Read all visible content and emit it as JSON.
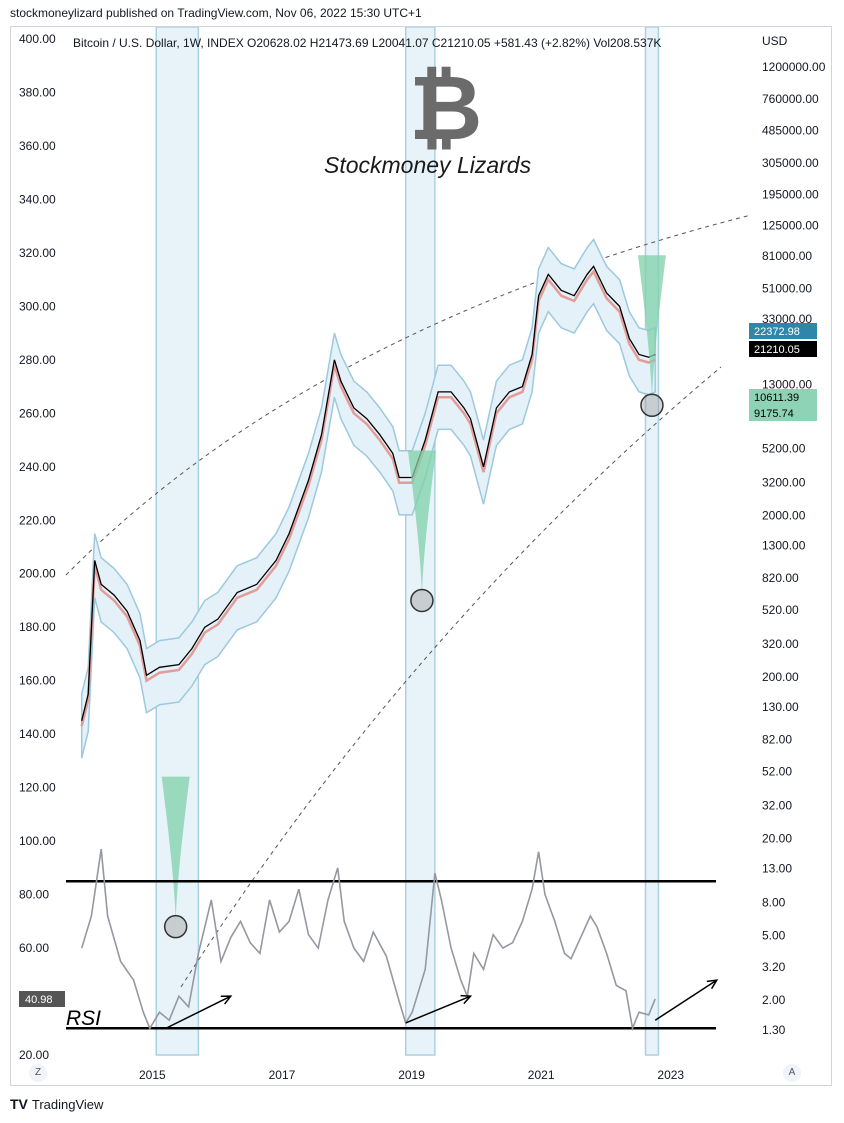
{
  "publisher_line": "stockmoneylizard published on TradingView.com, Nov 06, 2022 15:30 UTC+1",
  "legend_line": "Bitcoin / U.S. Dollar, 1W, INDEX  O20628.02  H21473.69  L20041.07  C21210.05  +581.43 (+2.82%)  Vol208.537K",
  "currency": "USD",
  "logo_text": "Stockmoney Lizards",
  "rsi_label": "RSI",
  "rsi_value": "40.98",
  "brand": "TradingView",
  "corner_left": "Z",
  "corner_right": "A",
  "price_badges": [
    {
      "value": "22372.98",
      "color": "#2e86ab"
    },
    {
      "value": "21210.05",
      "color": "#000000"
    },
    {
      "value": "10611.39",
      "color": "#8fd3b6"
    },
    {
      "value": "9175.74",
      "color": "#8fd3b6"
    }
  ],
  "colors": {
    "band_fill": "#e4f1f8",
    "band_edge": "#9cc9de",
    "green": "#7fd0a8",
    "red_mid": "#e3928e",
    "rsi_line": "#9598a1",
    "price": "#000000"
  },
  "chart_data": {
    "type": "line",
    "xlabel": "",
    "ylabel": "",
    "x_ticks": [
      "2015",
      "2017",
      "2019",
      "2021",
      "2023"
    ],
    "x_tick_years": [
      2015.1,
      2017.1,
      2019.1,
      2021.1,
      2023.1
    ],
    "left_axis_ticks": [
      400,
      380,
      360,
      340,
      320,
      300,
      280,
      260,
      240,
      220,
      200,
      180,
      160,
      140,
      120,
      100,
      80,
      60,
      20
    ],
    "left_axis_labels": [
      "400.00",
      "380.00",
      "360.00",
      "340.00",
      "320.00",
      "300.00",
      "280.00",
      "260.00",
      "240.00",
      "220.00",
      "200.00",
      "180.00",
      "160.00",
      "140.00",
      "120.00",
      "100.00",
      "80.00",
      "60.00",
      "20.00"
    ],
    "right_axis_labels": [
      "1200000.00",
      "760000.00",
      "485000.00",
      "305000.00",
      "195000.00",
      "125000.00",
      "81000.00",
      "51000.00",
      "33000.00",
      "13000.00",
      "5200.00",
      "3200.00",
      "2000.00",
      "1300.00",
      "820.00",
      "520.00",
      "320.00",
      "200.00",
      "130.00",
      "82.00",
      "52.00",
      "32.00",
      "20.00",
      "13.00",
      "8.00",
      "5.00",
      "3.20",
      "2.00",
      "1.30"
    ],
    "right_axis_values": [
      1200000,
      760000,
      485000,
      305000,
      195000,
      125000,
      81000,
      51000,
      33000,
      13000,
      5200,
      3200,
      2000,
      1300,
      820,
      520,
      320,
      200,
      130,
      82,
      52,
      32,
      20,
      13,
      8,
      5,
      3.2,
      2,
      1.3
    ],
    "rsi_levels": [
      85,
      30
    ],
    "series": [
      {
        "name": "BTCUSD",
        "points": [
          [
            2014.0,
            145
          ],
          [
            2014.1,
            155
          ],
          [
            2014.2,
            205
          ],
          [
            2014.3,
            196
          ],
          [
            2014.5,
            192
          ],
          [
            2014.7,
            186
          ],
          [
            2014.9,
            175
          ],
          [
            2015.0,
            162
          ],
          [
            2015.2,
            165
          ],
          [
            2015.5,
            166
          ],
          [
            2015.7,
            172
          ],
          [
            2015.9,
            180
          ],
          [
            2016.1,
            183
          ],
          [
            2016.4,
            193
          ],
          [
            2016.7,
            196
          ],
          [
            2017.0,
            205
          ],
          [
            2017.2,
            215
          ],
          [
            2017.5,
            235
          ],
          [
            2017.7,
            252
          ],
          [
            2017.9,
            280
          ],
          [
            2018.0,
            272
          ],
          [
            2018.2,
            262
          ],
          [
            2018.4,
            258
          ],
          [
            2018.6,
            252
          ],
          [
            2018.8,
            245
          ],
          [
            2018.9,
            236
          ],
          [
            2019.1,
            236
          ],
          [
            2019.3,
            250
          ],
          [
            2019.5,
            268
          ],
          [
            2019.7,
            268
          ],
          [
            2019.9,
            262
          ],
          [
            2020.0,
            258
          ],
          [
            2020.2,
            240
          ],
          [
            2020.4,
            262
          ],
          [
            2020.6,
            268
          ],
          [
            2020.8,
            270
          ],
          [
            2020.95,
            282
          ],
          [
            2021.05,
            304
          ],
          [
            2021.2,
            312
          ],
          [
            2021.4,
            306
          ],
          [
            2021.6,
            304
          ],
          [
            2021.8,
            312
          ],
          [
            2021.9,
            315
          ],
          [
            2022.1,
            305
          ],
          [
            2022.3,
            300
          ],
          [
            2022.45,
            288
          ],
          [
            2022.6,
            282
          ],
          [
            2022.75,
            281
          ],
          [
            2022.85,
            282
          ]
        ]
      },
      {
        "name": "RSI",
        "points": [
          [
            2014.0,
            60
          ],
          [
            2014.15,
            72
          ],
          [
            2014.3,
            97
          ],
          [
            2014.4,
            72
          ],
          [
            2014.6,
            55
          ],
          [
            2014.8,
            48
          ],
          [
            2014.95,
            36
          ],
          [
            2015.05,
            30
          ],
          [
            2015.2,
            36
          ],
          [
            2015.35,
            33
          ],
          [
            2015.5,
            42
          ],
          [
            2015.65,
            38
          ],
          [
            2015.8,
            58
          ],
          [
            2016.0,
            78
          ],
          [
            2016.15,
            55
          ],
          [
            2016.3,
            64
          ],
          [
            2016.45,
            70
          ],
          [
            2016.6,
            62
          ],
          [
            2016.75,
            58
          ],
          [
            2016.9,
            78
          ],
          [
            2017.05,
            66
          ],
          [
            2017.2,
            70
          ],
          [
            2017.35,
            82
          ],
          [
            2017.5,
            65
          ],
          [
            2017.65,
            60
          ],
          [
            2017.8,
            78
          ],
          [
            2017.95,
            90
          ],
          [
            2018.05,
            70
          ],
          [
            2018.2,
            60
          ],
          [
            2018.35,
            55
          ],
          [
            2018.5,
            66
          ],
          [
            2018.7,
            57
          ],
          [
            2018.9,
            40
          ],
          [
            2019.0,
            32
          ],
          [
            2019.1,
            36
          ],
          [
            2019.3,
            52
          ],
          [
            2019.45,
            88
          ],
          [
            2019.55,
            78
          ],
          [
            2019.7,
            60
          ],
          [
            2019.85,
            48
          ],
          [
            2019.95,
            42
          ],
          [
            2020.05,
            58
          ],
          [
            2020.2,
            52
          ],
          [
            2020.35,
            65
          ],
          [
            2020.5,
            60
          ],
          [
            2020.65,
            62
          ],
          [
            2020.8,
            70
          ],
          [
            2020.95,
            82
          ],
          [
            2021.05,
            96
          ],
          [
            2021.15,
            80
          ],
          [
            2021.3,
            70
          ],
          [
            2021.45,
            58
          ],
          [
            2021.55,
            56
          ],
          [
            2021.7,
            64
          ],
          [
            2021.85,
            72
          ],
          [
            2021.95,
            68
          ],
          [
            2022.1,
            58
          ],
          [
            2022.25,
            46
          ],
          [
            2022.4,
            44
          ],
          [
            2022.5,
            30
          ],
          [
            2022.6,
            36
          ],
          [
            2022.75,
            35
          ],
          [
            2022.85,
            41
          ]
        ]
      }
    ],
    "highlight_zones": [
      [
        2015.15,
        2015.8
      ],
      [
        2019.0,
        2019.45
      ],
      [
        2022.7,
        2022.9
      ]
    ],
    "circles": [
      {
        "year": 2015.45,
        "value": 68
      },
      {
        "year": 2019.25,
        "value": 190
      },
      {
        "year": 2022.8,
        "value": 263
      }
    ]
  }
}
